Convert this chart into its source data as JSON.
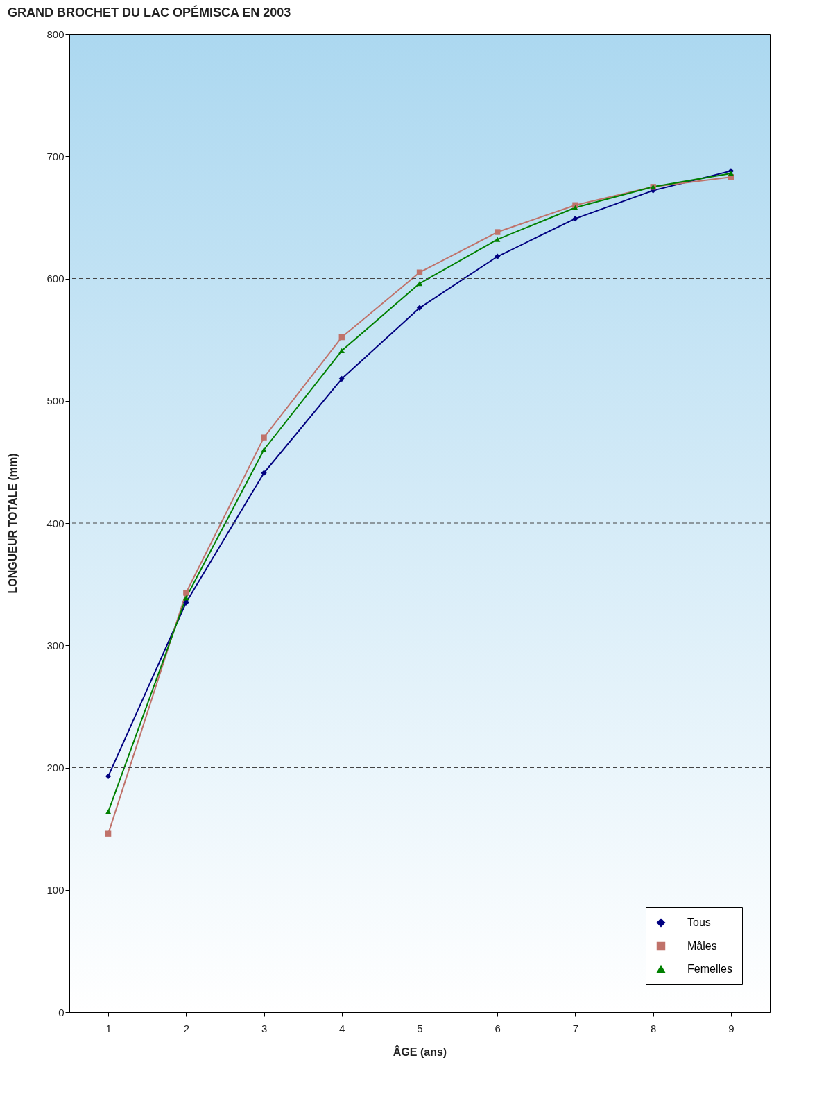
{
  "chart_data": {
    "type": "line",
    "title": "GRAND BROCHET DU LAC OPÉMISCA EN 2003",
    "xlabel": "ÂGE (ans)",
    "ylabel": "LONGUEUR TOTALE  (mm)",
    "categories": [
      "1",
      "2",
      "3",
      "4",
      "5",
      "6",
      "7",
      "8",
      "9"
    ],
    "series": [
      {
        "name": "Tous",
        "color": "#000080",
        "marker": "diamond",
        "values": [
          193,
          335,
          441,
          518,
          576,
          618,
          649,
          672,
          688
        ]
      },
      {
        "name": "Mâles",
        "color": "#c0726a",
        "marker": "square",
        "values": [
          146,
          343,
          470,
          552,
          605,
          638,
          660,
          675,
          683
        ]
      },
      {
        "name": "Femelles",
        "color": "#008000",
        "marker": "triangle",
        "values": [
          164,
          339,
          460,
          541,
          596,
          632,
          658,
          675,
          686
        ]
      }
    ],
    "ylim": [
      0,
      800
    ],
    "yticks": [
      0,
      100,
      200,
      300,
      400,
      500,
      600,
      700,
      800
    ],
    "grid": false,
    "ref_lines": [
      {
        "axis": "y",
        "value": 200,
        "line_style": "dashed"
      },
      {
        "axis": "y",
        "value": 400,
        "line_style": "dashed"
      },
      {
        "axis": "y",
        "value": 600,
        "line_style": "dashed"
      }
    ],
    "legend": "bottom right",
    "line_style": "solid"
  }
}
